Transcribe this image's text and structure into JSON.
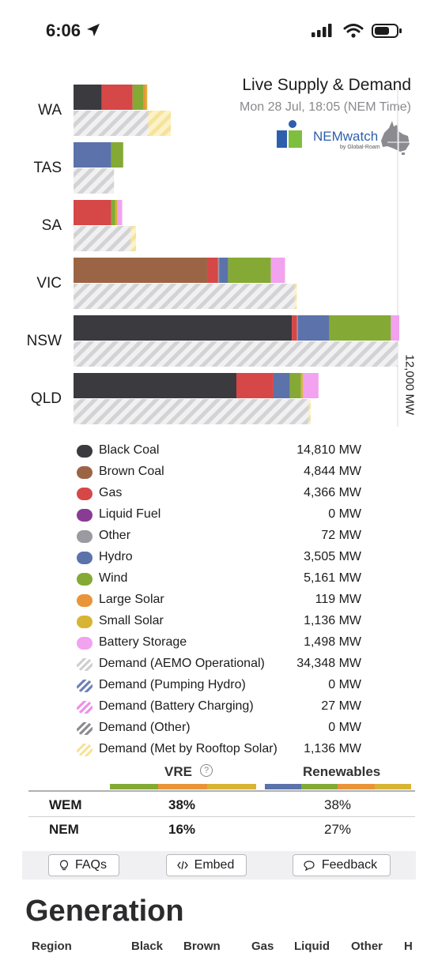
{
  "status": {
    "time": "6:06"
  },
  "header": {
    "title": "Live Supply & Demand",
    "subtitle": "Mon 28 Jul, 18:05 (NEM Time)",
    "brand": "NEMwatch",
    "brand_byline": "by Global-Roam"
  },
  "chart_data": {
    "type": "bar",
    "orientation": "horizontal",
    "stacked": true,
    "categories": [
      "WA",
      "TAS",
      "SA",
      "VIC",
      "NSW",
      "QLD"
    ],
    "scale_label": "12,000 MW",
    "supply_series": [
      {
        "name": "Black Coal",
        "color": "#3b3a3f",
        "values": [
          1080,
          0,
          0,
          0,
          8350,
          6230
        ]
      },
      {
        "name": "Brown Coal",
        "color": "#9b6545",
        "values": [
          0,
          0,
          0,
          5110,
          0,
          0
        ]
      },
      {
        "name": "Gas",
        "color": "#d64747",
        "values": [
          1180,
          0,
          1440,
          420,
          200,
          1420
        ]
      },
      {
        "name": "Other",
        "color": "#9a9aa0",
        "values": [
          0,
          0,
          0,
          40,
          30,
          0
        ]
      },
      {
        "name": "Hydro",
        "color": "#5b72aa",
        "values": [
          0,
          1440,
          0,
          340,
          1210,
          620
        ]
      },
      {
        "name": "Wind",
        "color": "#84aa35",
        "values": [
          420,
          460,
          160,
          1640,
          2350,
          430
        ]
      },
      {
        "name": "Large Solar",
        "color": "#ea943a",
        "values": [
          90,
          0,
          0,
          0,
          0,
          0
        ]
      },
      {
        "name": "Small Solar",
        "color": "#d7b434",
        "values": [
          50,
          0,
          80,
          0,
          0,
          70
        ]
      },
      {
        "name": "Battery Storage",
        "color": "#f2a2ee",
        "values": [
          0,
          0,
          180,
          540,
          320,
          600
        ]
      }
    ],
    "demand_series": [
      {
        "name": "Demand (AEMO Operational)",
        "values": [
          2860,
          1550,
          2190,
          8460,
          12400,
          9000
        ]
      },
      {
        "name": "Demand (Met by Rooftop Solar)",
        "values": [
          860,
          0,
          200,
          80,
          0,
          70
        ]
      }
    ],
    "legend": [
      {
        "name": "Black Coal",
        "value": "14,810 MW",
        "color": "#3b3a3f",
        "hatched": false
      },
      {
        "name": "Brown Coal",
        "value": "4,844 MW",
        "color": "#9b6545",
        "hatched": false
      },
      {
        "name": "Gas",
        "value": "4,366 MW",
        "color": "#d64747",
        "hatched": false
      },
      {
        "name": "Liquid Fuel",
        "value": "0 MW",
        "color": "#8a3b94",
        "hatched": false
      },
      {
        "name": "Other",
        "value": "72 MW",
        "color": "#9a9aa0",
        "hatched": false
      },
      {
        "name": "Hydro",
        "value": "3,505 MW",
        "color": "#5b72aa",
        "hatched": false
      },
      {
        "name": "Wind",
        "value": "5,161 MW",
        "color": "#84aa35",
        "hatched": false
      },
      {
        "name": "Large Solar",
        "value": "119 MW",
        "color": "#ea943a",
        "hatched": false
      },
      {
        "name": "Small Solar",
        "value": "1,136 MW",
        "color": "#d7b434",
        "hatched": false
      },
      {
        "name": "Battery Storage",
        "value": "1,498 MW",
        "color": "#f2a2ee",
        "hatched": false
      },
      {
        "name": "Demand (AEMO Operational)",
        "value": "34,348 MW",
        "color": "#cfcfd1",
        "hatched": true
      },
      {
        "name": "Demand (Pumping Hydro)",
        "value": "0 MW",
        "color": "#6f82b4",
        "hatched": true
      },
      {
        "name": "Demand (Battery Charging)",
        "value": "27 MW",
        "color": "#ef8fe8",
        "hatched": true
      },
      {
        "name": "Demand (Other)",
        "value": "0 MW",
        "color": "#8c8c90",
        "hatched": true
      },
      {
        "name": "Demand (Met by Rooftop Solar)",
        "value": "1,136 MW",
        "color": "#f6e39a",
        "hatched": true
      }
    ]
  },
  "share_table": {
    "vre_label": "VRE",
    "help_icon": "?",
    "renewables_label": "Renewables",
    "rows": [
      {
        "label": "WEM",
        "vre": "38%",
        "renewables": "38%"
      },
      {
        "label": "NEM",
        "vre": "16%",
        "renewables": "27%"
      }
    ],
    "vre_strip_colors": [
      "#84aa35",
      "#ea943a",
      "#d7b434"
    ],
    "renewables_strip_colors": [
      "#5b72aa",
      "#84aa35",
      "#ea943a",
      "#d7b434"
    ]
  },
  "actions": {
    "faqs": "FAQs",
    "embed": "Embed",
    "feedback": "Feedback"
  },
  "generation": {
    "title": "Generation",
    "columns": [
      "Region",
      "Black",
      "Brown",
      "Gas",
      "Liquid",
      "Other",
      "H"
    ]
  }
}
